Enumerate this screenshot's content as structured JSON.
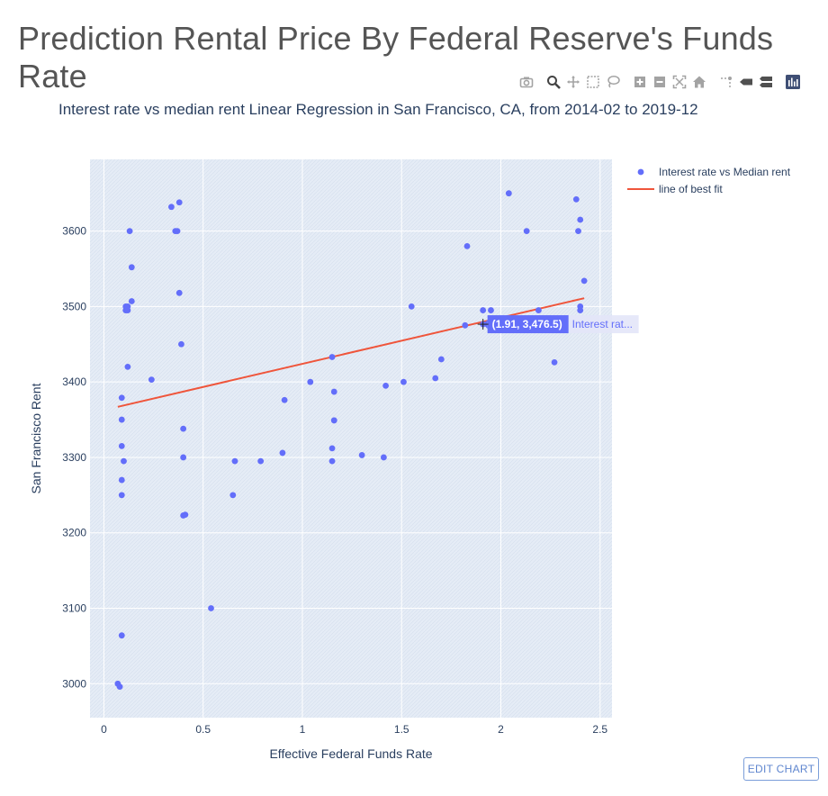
{
  "page": {
    "title": "Prediction Rental Price By Federal Reserve's Funds Rate",
    "edit_chart_label": "EDIT CHART"
  },
  "modebar": {
    "buttons": [
      "camera-icon",
      "zoom-icon",
      "pan-icon",
      "box-select-icon",
      "lasso-select-icon",
      "zoom-in-icon",
      "zoom-out-icon",
      "autoscale-icon",
      "reset-axes-icon",
      "spike-lines-icon",
      "hover-closest-icon",
      "hover-compare-icon",
      "plotly-logo-icon"
    ]
  },
  "chart_data": {
    "type": "scatter",
    "title": "Interest rate vs median rent Linear Regression in San Francisco, CA, from 2014-02 to 2019-12",
    "xlabel": "Effective Federal Funds Rate",
    "ylabel": "San Francisco Rent",
    "xlim": [
      -0.07,
      2.56
    ],
    "ylim": [
      2955,
      3695
    ],
    "x_ticks": [
      0,
      0.5,
      1,
      1.5,
      2,
      2.5
    ],
    "x_tick_labels": [
      "0",
      "0.5",
      "1",
      "1.5",
      "2",
      "2.5"
    ],
    "y_ticks": [
      3000,
      3100,
      3200,
      3300,
      3400,
      3500,
      3600
    ],
    "y_tick_labels": [
      "3000",
      "3100",
      "3200",
      "3300",
      "3400",
      "3500",
      "3600"
    ],
    "legend_position": "top-right",
    "grid": true,
    "colors": {
      "scatter": "#636efa",
      "line": "#ef553b",
      "plot_bg": "#e5ecf6"
    },
    "series": [
      {
        "name": "Interest rate vs Median rent",
        "mode": "markers",
        "x": [
          0.07,
          0.08,
          0.09,
          0.09,
          0.09,
          0.09,
          0.09,
          0.09,
          0.1,
          0.11,
          0.11,
          0.12,
          0.12,
          0.12,
          0.13,
          0.14,
          0.14,
          0.24,
          0.34,
          0.36,
          0.37,
          0.38,
          0.38,
          0.39,
          0.4,
          0.4,
          0.4,
          0.41,
          0.54,
          0.65,
          0.66,
          0.79,
          0.9,
          0.91,
          1.04,
          1.15,
          1.15,
          1.15,
          1.16,
          1.16,
          1.16,
          1.3,
          1.41,
          1.42,
          1.51,
          1.55,
          1.67,
          1.7,
          1.82,
          1.83,
          1.91,
          1.91,
          1.95,
          2.04,
          2.13,
          2.19,
          2.27,
          2.38,
          2.39,
          2.4,
          2.4,
          2.4,
          2.42
        ],
        "y": [
          3000,
          2996,
          3064,
          3250,
          3270,
          3315,
          3350,
          3379,
          3295,
          3495,
          3500,
          3420,
          3495,
          3500,
          3600,
          3552,
          3507,
          3403,
          3632,
          3600,
          3600,
          3638,
          3518,
          3450,
          3300,
          3338,
          3223,
          3224,
          3100,
          3250,
          3295,
          3295,
          3306,
          3376,
          3400,
          3295,
          3312,
          3433,
          3387,
          3349,
          3349,
          3303,
          3300,
          3395,
          3400,
          3500,
          3405,
          3430,
          3475,
          3580,
          3476.5,
          3495,
          3495,
          3650,
          3600,
          3495,
          3426,
          3642,
          3600,
          3615,
          3495,
          3500,
          3534
        ]
      },
      {
        "name": "line of best fit",
        "mode": "lines",
        "x": [
          0.07,
          2.42
        ],
        "y": [
          3367,
          3511
        ]
      }
    ],
    "hover": {
      "x": 1.91,
      "y": 3476.5,
      "label": "(1.91, 3,476.5)",
      "trace_label": "Interest rat..."
    }
  }
}
